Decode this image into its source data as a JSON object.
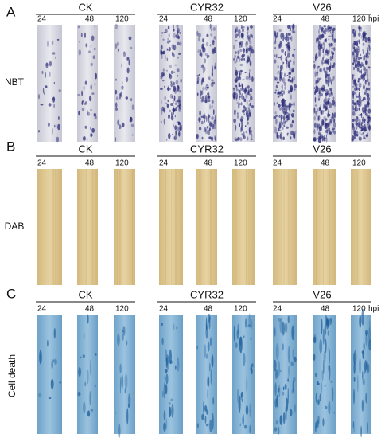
{
  "panels": [
    {
      "letter": "A",
      "row_label": "NBT",
      "unit": "hpi",
      "groups": [
        {
          "name": "CK",
          "times": [
            "24",
            "48",
            "120"
          ]
        },
        {
          "name": "CYR32",
          "times": [
            "24",
            "48",
            "120"
          ]
        },
        {
          "name": "V26",
          "times": [
            "24",
            "48",
            "120"
          ]
        }
      ]
    },
    {
      "letter": "B",
      "row_label": "DAB",
      "groups": [
        {
          "name": "CK",
          "times": [
            "24",
            "48",
            "120"
          ]
        },
        {
          "name": "CYR32",
          "times": [
            "24",
            "48",
            "120"
          ]
        },
        {
          "name": "V26",
          "times": [
            "24",
            "48",
            "120"
          ]
        }
      ]
    },
    {
      "letter": "C",
      "row_label": "Cell death",
      "unit": "hpi",
      "groups": [
        {
          "name": "CK",
          "times": [
            "24",
            "48",
            "120"
          ]
        },
        {
          "name": "CYR32",
          "times": [
            "24",
            "48",
            "120"
          ]
        },
        {
          "name": "V26",
          "times": [
            "24",
            "48",
            "120"
          ]
        }
      ]
    }
  ]
}
